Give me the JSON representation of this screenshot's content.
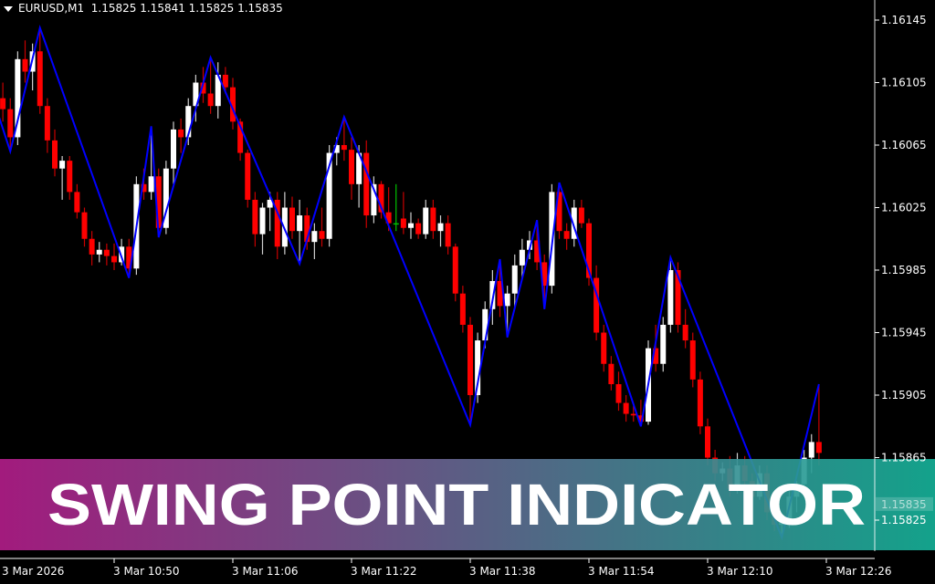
{
  "header": {
    "symbol": "EURUSD,M1",
    "ohlc": "1.15825 1.15841 1.15825 1.15835"
  },
  "banner": {
    "title": "SWING POINT INDICATOR",
    "gradient_from": "#b01d88",
    "gradient_to": "#15b097"
  },
  "colors": {
    "background": "#000000",
    "bear": "#ff0000",
    "bear_wick": "#c80000",
    "bull": "#ffffff",
    "doji": "#00c000",
    "zigzag": "#0000ff",
    "axis_text": "#ffffff"
  },
  "chart_data": {
    "type": "candlestick",
    "symbol": "EURUSD",
    "timeframe": "M1",
    "current_price": "1.15835",
    "y_ticks": [
      "1.16145",
      "1.16105",
      "1.16065",
      "1.16025",
      "1.15985",
      "1.15945",
      "1.15905",
      "1.15865",
      "1.15825"
    ],
    "x_ticks": [
      "3 Mar 2026",
      "3 Mar 10:50",
      "3 Mar 11:06",
      "3 Mar 11:22",
      "3 Mar 11:38",
      "3 Mar 11:54",
      "3 Mar 12:10",
      "3 Mar 12:26"
    ],
    "ylim": [
      1.158,
      1.1616
    ],
    "candles": [
      [
        "10:35",
        1.16095,
        1.16105,
        1.1608,
        1.16088
      ],
      [
        "10:36",
        1.16088,
        1.16095,
        1.16061,
        1.1607
      ],
      [
        "10:37",
        1.1607,
        1.16125,
        1.16065,
        1.1612
      ],
      [
        "10:38",
        1.1612,
        1.16132,
        1.16105,
        1.16112
      ],
      [
        "10:39",
        1.16112,
        1.1613,
        1.161,
        1.16125
      ],
      [
        "10:40",
        1.16125,
        1.1614,
        1.16085,
        1.1609
      ],
      [
        "10:41",
        1.1609,
        1.16095,
        1.1606,
        1.16068
      ],
      [
        "10:42",
        1.16068,
        1.16075,
        1.16045,
        1.1605
      ],
      [
        "10:43",
        1.1605,
        1.16058,
        1.1603,
        1.16055
      ],
      [
        "10:44",
        1.16055,
        1.16058,
        1.1603,
        1.16035
      ],
      [
        "10:45",
        1.16035,
        1.1604,
        1.16018,
        1.16022
      ],
      [
        "10:46",
        1.16022,
        1.16025,
        1.16,
        1.16005
      ],
      [
        "10:47",
        1.16005,
        1.1601,
        1.15988,
        1.15995
      ],
      [
        "10:48",
        1.15995,
        1.16003,
        1.1599,
        1.15998
      ],
      [
        "10:49",
        1.15998,
        1.16002,
        1.15988,
        1.15994
      ],
      [
        "10:50",
        1.15994,
        1.16002,
        1.15985,
        1.1599
      ],
      [
        "10:51",
        1.1599,
        1.16005,
        1.15988,
        1.16
      ],
      [
        "10:52",
        1.16,
        1.16005,
        1.1598,
        1.15986
      ],
      [
        "10:53",
        1.15986,
        1.16045,
        1.15982,
        1.1604
      ],
      [
        "10:54",
        1.1604,
        1.1605,
        1.1603,
        1.16035
      ],
      [
        "10:55",
        1.16035,
        1.16077,
        1.1603,
        1.16045
      ],
      [
        "10:56",
        1.16045,
        1.1605,
        1.16006,
        1.16012
      ],
      [
        "10:57",
        1.16012,
        1.16055,
        1.16008,
        1.1605
      ],
      [
        "10:58",
        1.1605,
        1.1608,
        1.1604,
        1.16075
      ],
      [
        "10:59",
        1.16075,
        1.16082,
        1.1606,
        1.1607
      ],
      [
        "11:00",
        1.1607,
        1.16095,
        1.16065,
        1.1609
      ],
      [
        "11:01",
        1.1609,
        1.1611,
        1.1608,
        1.16105
      ],
      [
        "11:02",
        1.16105,
        1.16115,
        1.16092,
        1.16098
      ],
      [
        "11:03",
        1.16098,
        1.16121,
        1.16085,
        1.1609
      ],
      [
        "11:04",
        1.1609,
        1.16118,
        1.16082,
        1.1611
      ],
      [
        "11:05",
        1.1611,
        1.16115,
        1.16098,
        1.16102
      ],
      [
        "11:06",
        1.16102,
        1.16108,
        1.16075,
        1.1608
      ],
      [
        "11:07",
        1.1608,
        1.16082,
        1.16055,
        1.1606
      ],
      [
        "11:08",
        1.1606,
        1.16062,
        1.16025,
        1.1603
      ],
      [
        "11:09",
        1.1603,
        1.16035,
        1.16,
        1.16008
      ],
      [
        "11:10",
        1.16008,
        1.16028,
        1.15995,
        1.16025
      ],
      [
        "11:11",
        1.16025,
        1.16035,
        1.1601,
        1.1603
      ],
      [
        "11:12",
        1.1603,
        1.16035,
        1.15992,
        1.16
      ],
      [
        "11:13",
        1.16,
        1.16035,
        1.15995,
        1.16025
      ],
      [
        "11:14",
        1.16025,
        1.16032,
        1.16005,
        1.1601
      ],
      [
        "11:15",
        1.1601,
        1.1603,
        1.15989,
        1.1602
      ],
      [
        "11:16",
        1.1602,
        1.16025,
        1.15998,
        1.16003
      ],
      [
        "11:17",
        1.16003,
        1.16015,
        1.15992,
        1.1601
      ],
      [
        "11:18",
        1.1601,
        1.16025,
        1.16,
        1.16005
      ],
      [
        "11:19",
        1.16005,
        1.16065,
        1.16,
        1.1606
      ],
      [
        "11:20",
        1.1606,
        1.1607,
        1.16052,
        1.16065
      ],
      [
        "11:21",
        1.16065,
        1.16083,
        1.16055,
        1.16062
      ],
      [
        "11:22",
        1.16062,
        1.1607,
        1.1603,
        1.1604
      ],
      [
        "11:23",
        1.1604,
        1.16065,
        1.16025,
        1.1606
      ],
      [
        "11:24",
        1.1606,
        1.16068,
        1.16012,
        1.1602
      ],
      [
        "11:25",
        1.1602,
        1.16045,
        1.16015,
        1.1604
      ],
      [
        "11:26",
        1.1604,
        1.16042,
        1.16018,
        1.16022
      ],
      [
        "11:27",
        1.16022,
        1.16038,
        1.1601,
        1.16015
      ],
      [
        "11:28",
        1.16015,
        1.1604,
        1.1601,
        1.16015
      ],
      [
        "11:29",
        1.16018,
        1.16035,
        1.16008,
        1.16012
      ],
      [
        "11:30",
        1.16012,
        1.16022,
        1.16005,
        1.16015
      ],
      [
        "11:31",
        1.16015,
        1.16018,
        1.16005,
        1.16008
      ],
      [
        "11:32",
        1.16008,
        1.1603,
        1.16005,
        1.16025
      ],
      [
        "11:33",
        1.16025,
        1.1603,
        1.16005,
        1.1601
      ],
      [
        "11:34",
        1.1601,
        1.1602,
        1.16,
        1.16015
      ],
      [
        "11:35",
        1.16015,
        1.1602,
        1.15995,
        1.16
      ],
      [
        "11:36",
        1.16,
        1.16002,
        1.15965,
        1.1597
      ],
      [
        "11:37",
        1.1597,
        1.15975,
        1.15945,
        1.1595
      ],
      [
        "11:38",
        1.1595,
        1.15955,
        1.15886,
        1.15905
      ],
      [
        "11:39",
        1.15905,
        1.15945,
        1.159,
        1.1594
      ],
      [
        "11:40",
        1.1594,
        1.15965,
        1.15935,
        1.1596
      ],
      [
        "11:41",
        1.1596,
        1.15985,
        1.1595,
        1.15978
      ],
      [
        "11:42",
        1.15978,
        1.15992,
        1.15955,
        1.15962
      ],
      [
        "11:43",
        1.15962,
        1.15975,
        1.15942,
        1.1597
      ],
      [
        "11:44",
        1.1597,
        1.15995,
        1.1596,
        1.15988
      ],
      [
        "11:45",
        1.15988,
        1.16005,
        1.1598,
        1.15998
      ],
      [
        "11:46",
        1.15998,
        1.1601,
        1.15992,
        1.16004
      ],
      [
        "11:47",
        1.16004,
        1.16017,
        1.15985,
        1.1599
      ],
      [
        "11:48",
        1.1599,
        1.15995,
        1.1596,
        1.15975
      ],
      [
        "11:49",
        1.15975,
        1.1604,
        1.1597,
        1.16035
      ],
      [
        "11:50",
        1.16035,
        1.16041,
        1.16005,
        1.1601
      ],
      [
        "11:51",
        1.1601,
        1.16015,
        1.15998,
        1.16005
      ],
      [
        "11:52",
        1.16005,
        1.1603,
        1.16,
        1.16025
      ],
      [
        "11:53",
        1.16025,
        1.1603,
        1.16012,
        1.16015
      ],
      [
        "11:54",
        1.16015,
        1.16018,
        1.15975,
        1.1598
      ],
      [
        "11:55",
        1.1598,
        1.15988,
        1.1594,
        1.15945
      ],
      [
        "11:56",
        1.15945,
        1.1595,
        1.1592,
        1.15925
      ],
      [
        "11:57",
        1.15925,
        1.1593,
        1.15908,
        1.15912
      ],
      [
        "11:58",
        1.15912,
        1.1592,
        1.15895,
        1.159
      ],
      [
        "11:59",
        1.159,
        1.15905,
        1.15888,
        1.15893
      ],
      [
        "12:00",
        1.15893,
        1.15898,
        1.15888,
        1.15892
      ],
      [
        "12:01",
        1.15892,
        1.15902,
        1.15885,
        1.15888
      ],
      [
        "12:02",
        1.15888,
        1.1594,
        1.15886,
        1.15935
      ],
      [
        "12:03",
        1.15935,
        1.1595,
        1.1592,
        1.15925
      ],
      [
        "12:04",
        1.15925,
        1.15955,
        1.1592,
        1.1595
      ],
      [
        "12:05",
        1.1595,
        1.15993,
        1.15945,
        1.15985
      ],
      [
        "12:06",
        1.15985,
        1.1599,
        1.15945,
        1.1595
      ],
      [
        "12:07",
        1.1595,
        1.1596,
        1.15935,
        1.1594
      ],
      [
        "12:08",
        1.1594,
        1.15945,
        1.1591,
        1.15915
      ],
      [
        "12:09",
        1.15915,
        1.1592,
        1.1588,
        1.15885
      ],
      [
        "12:10",
        1.15885,
        1.1589,
        1.1586,
        1.15865
      ],
      [
        "12:11",
        1.15865,
        1.1587,
        1.1585,
        1.15855
      ],
      [
        "12:12",
        1.15855,
        1.15862,
        1.1585,
        1.15858
      ],
      [
        "12:13",
        1.15858,
        1.15866,
        1.1584,
        1.15845
      ],
      [
        "12:14",
        1.15845,
        1.15868,
        1.15842,
        1.1586
      ],
      [
        "12:15",
        1.1586,
        1.15866,
        1.15845,
        1.1585
      ],
      [
        "12:16",
        1.1585,
        1.15855,
        1.15835,
        1.1584
      ],
      [
        "12:17",
        1.1584,
        1.1586,
        1.15838,
        1.15855
      ],
      [
        "12:18",
        1.15855,
        1.1586,
        1.15825,
        1.1583
      ],
      [
        "12:19",
        1.1583,
        1.15835,
        1.15818,
        1.15822
      ],
      [
        "12:20",
        1.15822,
        1.15828,
        1.15814,
        1.15825
      ],
      [
        "12:21",
        1.15825,
        1.15845,
        1.1582,
        1.1584
      ],
      [
        "12:22",
        1.1584,
        1.1585,
        1.1583,
        1.15848
      ],
      [
        "12:23",
        1.15848,
        1.1587,
        1.1584,
        1.15865
      ],
      [
        "12:24",
        1.15865,
        1.1588,
        1.15855,
        1.15875
      ],
      [
        "12:25",
        1.15875,
        1.15912,
        1.1586,
        1.15868
      ],
      [
        "12:26",
        1.15825,
        1.15841,
        1.15825,
        1.15835
      ]
    ],
    "zigzag": [
      [
        "10:34",
        1.1609
      ],
      [
        "10:36",
        1.16061
      ],
      [
        "10:40",
        1.1614
      ],
      [
        "10:52",
        1.1598
      ],
      [
        "10:55",
        1.16077
      ],
      [
        "10:56",
        1.16006
      ],
      [
        "11:03",
        1.16121
      ],
      [
        "11:15",
        1.15989
      ],
      [
        "11:21",
        1.16083
      ],
      [
        "11:38",
        1.15886
      ],
      [
        "11:42",
        1.15992
      ],
      [
        "11:43",
        1.15942
      ],
      [
        "11:47",
        1.16017
      ],
      [
        "11:48",
        1.1596
      ],
      [
        "11:50",
        1.16041
      ],
      [
        "12:01",
        1.15885
      ],
      [
        "12:05",
        1.15993
      ],
      [
        "12:20",
        1.15814
      ],
      [
        "12:25",
        1.15912
      ]
    ]
  }
}
